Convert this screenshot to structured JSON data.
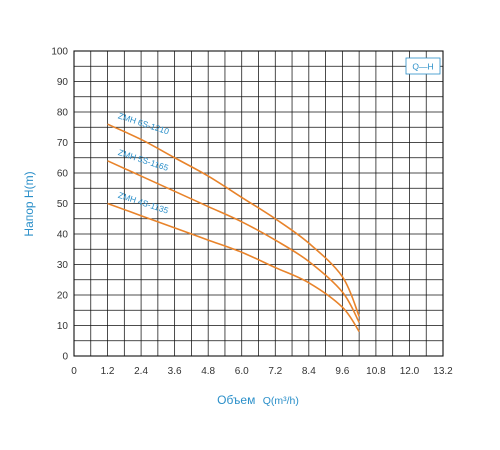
{
  "chart_data": {
    "type": "line",
    "xlabel": "Объем",
    "xunit": "Q(m³/h)",
    "ylabel": "Напор H(m)",
    "xlim": [
      0,
      13.2
    ],
    "ylim": [
      0,
      100
    ],
    "x_ticks": [
      "0",
      "1.2",
      "2.4",
      "3.6",
      "4.8",
      "6.0",
      "7.2",
      "8.4",
      "9.6",
      "10.8",
      "12.0",
      "13.2"
    ],
    "y_ticks": [
      "0",
      "10",
      "20",
      "30",
      "40",
      "50",
      "60",
      "70",
      "80",
      "90",
      "100"
    ],
    "grid": true,
    "legend": {
      "label": "Q—H",
      "placement": "top-right"
    },
    "series": [
      {
        "name": "ZMH 6S-1210",
        "x": [
          1.2,
          2.4,
          3.6,
          4.8,
          6.0,
          7.2,
          8.4,
          9.6,
          10.2
        ],
        "y": [
          76,
          71,
          65,
          59,
          52,
          45,
          37,
          26,
          13
        ]
      },
      {
        "name": "ZMH 5S-1165",
        "x": [
          1.2,
          2.4,
          3.6,
          4.8,
          6.0,
          7.2,
          8.4,
          9.6,
          10.2
        ],
        "y": [
          64,
          59,
          54,
          49,
          44,
          38,
          31,
          21,
          11
        ]
      },
      {
        "name": "ZMH 4S-1135",
        "x": [
          1.2,
          2.4,
          3.6,
          4.8,
          6.0,
          7.2,
          8.4,
          9.6,
          10.2
        ],
        "y": [
          50,
          46,
          42,
          38,
          34,
          29,
          24,
          16,
          8
        ]
      }
    ],
    "colors": {
      "line": "#e8832a",
      "grid": "#111111",
      "text": "#2a8fc9",
      "tick": "#333333"
    }
  }
}
